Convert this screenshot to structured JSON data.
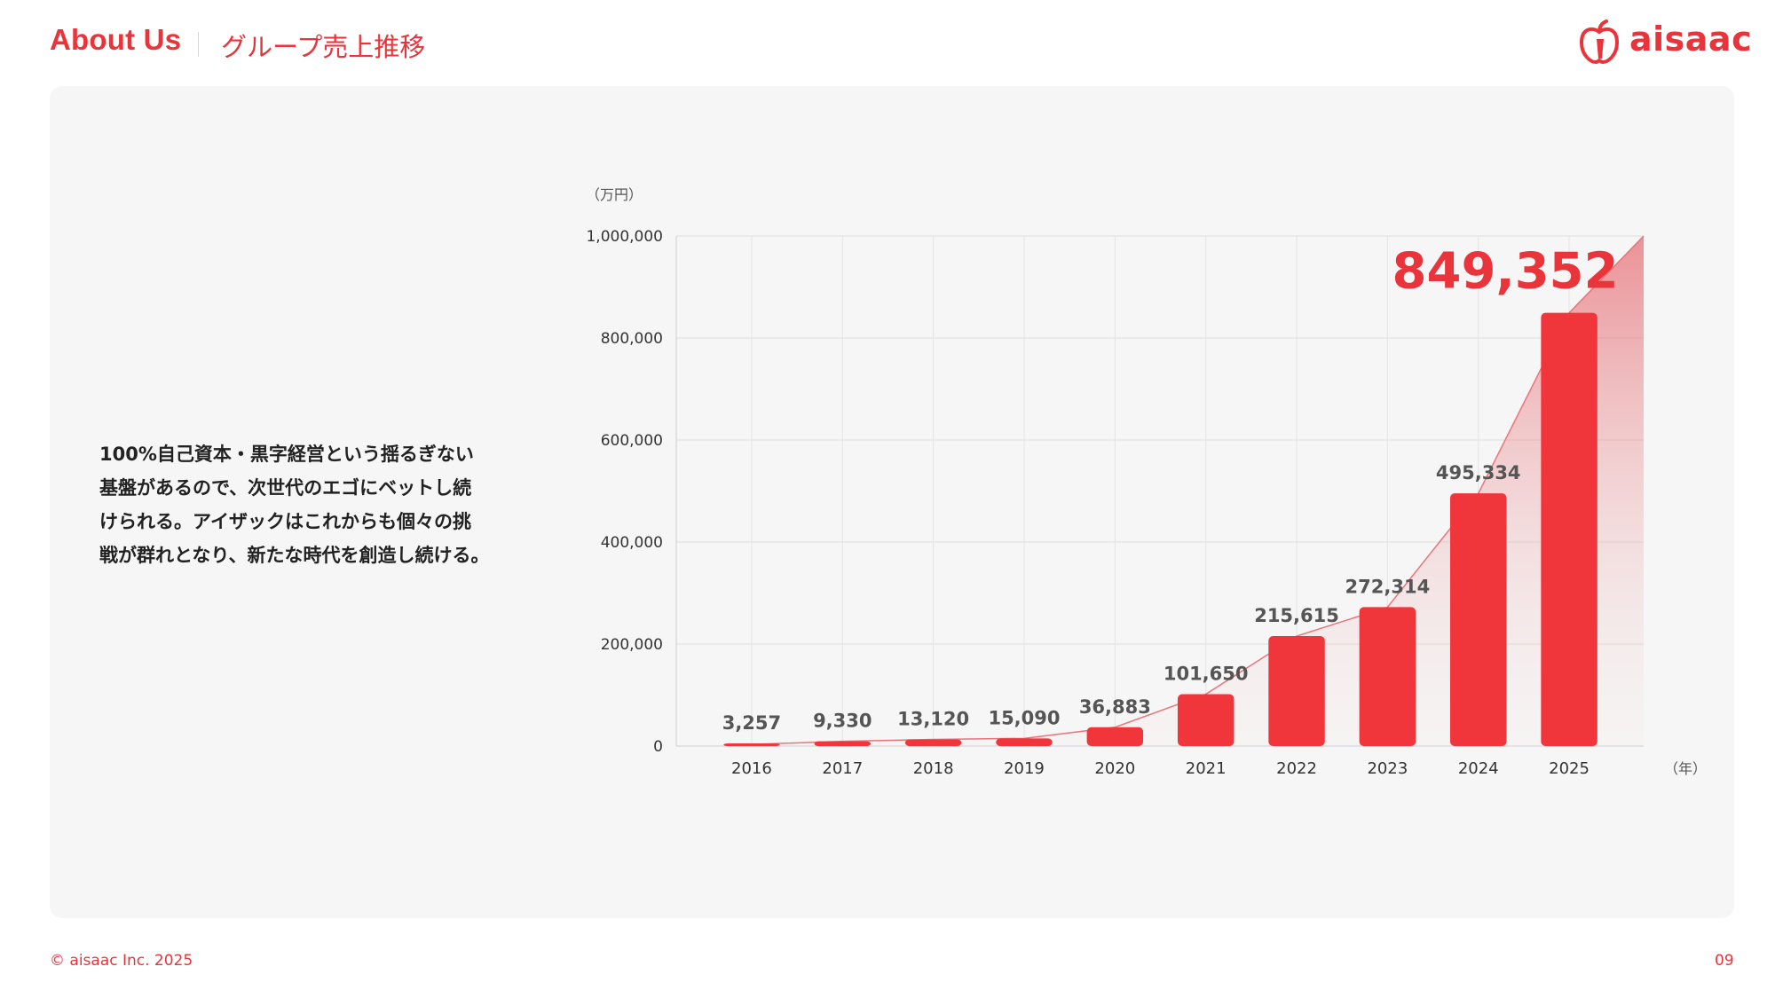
{
  "header": {
    "title": "About Us",
    "subtitle": "グループ売上推移"
  },
  "logo": {
    "text": "aisaac",
    "icon": "apple-icon",
    "color": "#e8343a"
  },
  "description": {
    "lines": [
      "100%自己資本・黒字経営という揺るぎない",
      "基盤があるので、次世代のエゴにベットし続",
      "けられる。アイザックはこれからも個々の挑",
      "戦が群れとなり、新たな時代を創造し続ける。"
    ]
  },
  "chart_data": {
    "type": "bar",
    "ylabel": "（万円）",
    "xlabel": "（年）",
    "ylim": [
      0,
      1000000
    ],
    "yticks": [
      0,
      200000,
      400000,
      600000,
      800000,
      1000000
    ],
    "y_tick_labels": [
      "0",
      "200,000",
      "400,000",
      "600,000",
      "800,000",
      "1,000,000"
    ],
    "categories": [
      "2016",
      "2017",
      "2018",
      "2019",
      "2020",
      "2021",
      "2022",
      "2023",
      "2024",
      "2025"
    ],
    "values": [
      3257,
      9330,
      13120,
      15090,
      36883,
      101650,
      215615,
      272314,
      495334,
      849352
    ],
    "value_labels": [
      "3,257",
      "9,330",
      "13,120",
      "15,090",
      "36,883",
      "101,650",
      "215,615",
      "272,314",
      "495,334",
      "849,352"
    ],
    "trend_end_value": 1000000,
    "grid": true,
    "bar_color": "#f0353b",
    "highlight_color": "#e8343a",
    "label_color": "#555555"
  },
  "footer": {
    "copyright": "© aisaac Inc. 2025",
    "page_number": "09"
  }
}
